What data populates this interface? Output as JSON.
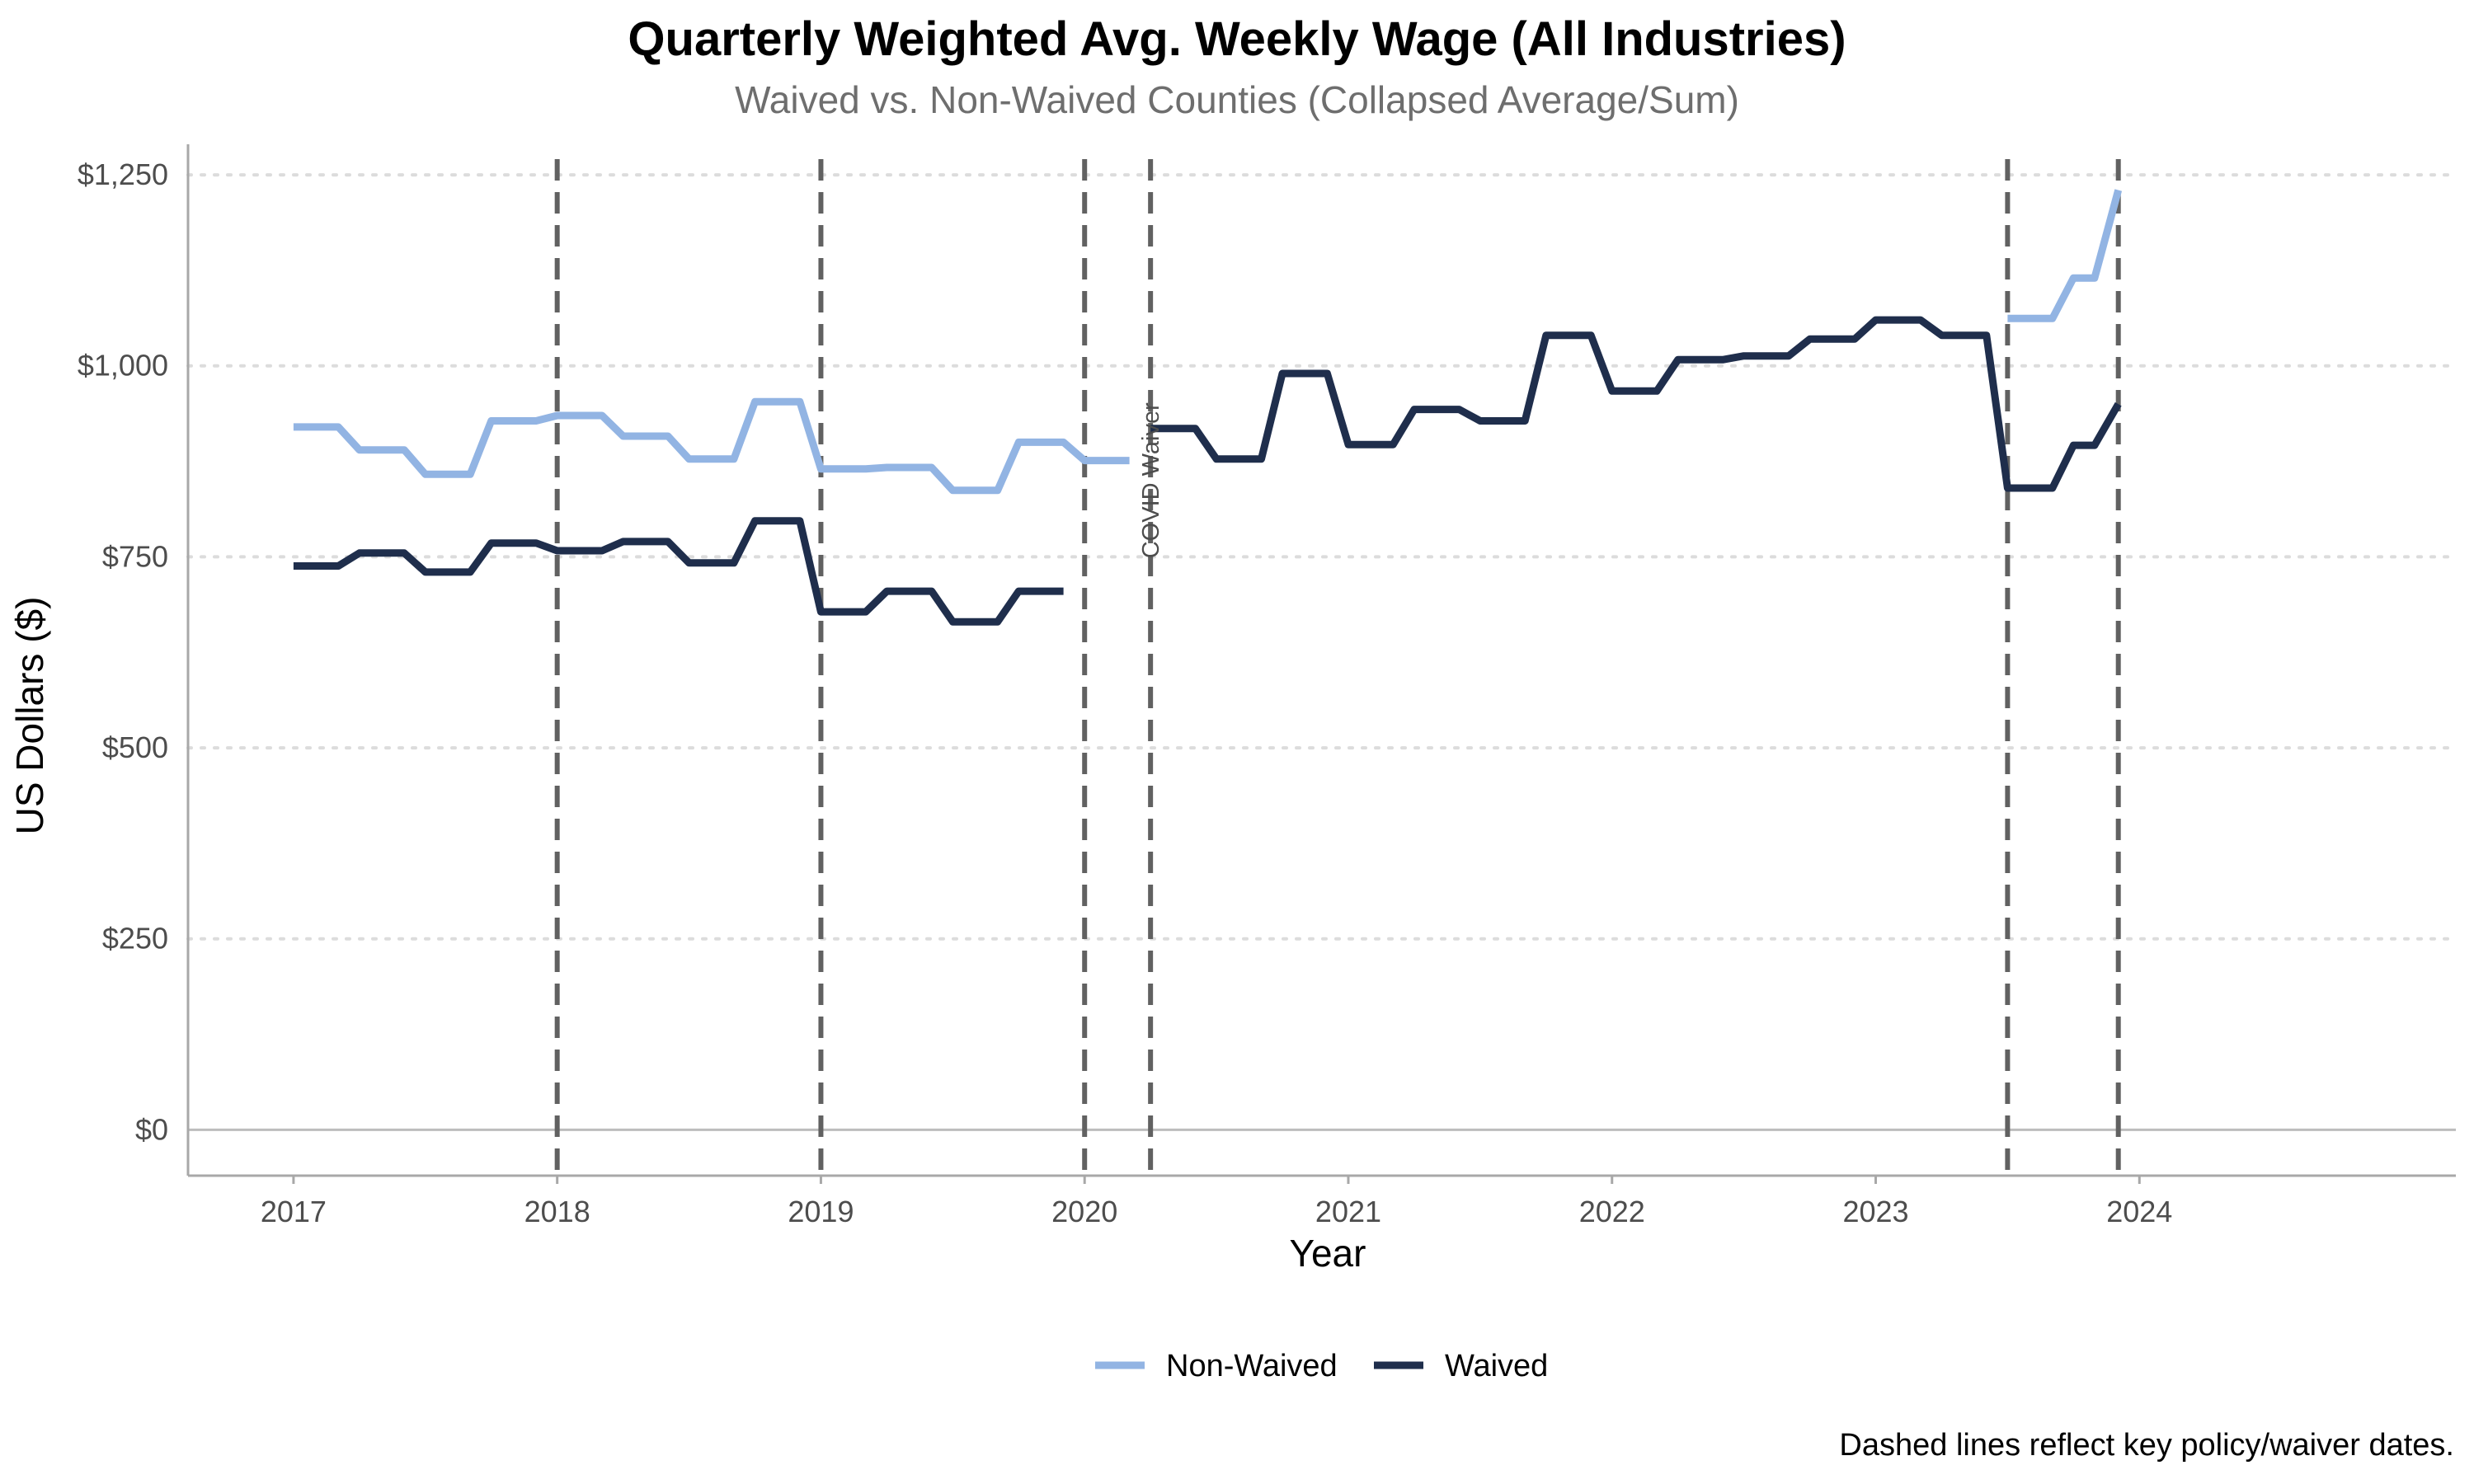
{
  "chart_data": {
    "type": "line",
    "title": "Quarterly Weighted Avg. Weekly Wage (All Industries)",
    "subtitle": "Waived vs. Non-Waived Counties (Collapsed Average/Sum)",
    "xlabel": "Year",
    "ylabel": "US Dollars ($)",
    "caption": "Dashed lines reflect key policy/waiver dates.",
    "xlim": [
      2016.6,
      2025.2
    ],
    "ylim": [
      -60,
      1290
    ],
    "x_ticks": [
      2017,
      2018,
      2019,
      2020,
      2021,
      2022,
      2023,
      2024
    ],
    "x_tick_labels": [
      "2017",
      "2018",
      "2019",
      "2020",
      "2021",
      "2022",
      "2023",
      "2024"
    ],
    "y_ticks": [
      0,
      250,
      500,
      750,
      1000,
      1250
    ],
    "y_tick_labels": [
      "$0",
      "$250",
      "$500",
      "$750",
      "$1,000",
      "$1,250"
    ],
    "grid": "horizontal dotted",
    "legend_position": "bottom",
    "colors": {
      "non_waived": "#92b4e3",
      "waived": "#1f2e4c",
      "vline": "#616161",
      "grid": "#dcdcdc",
      "axis": "#a8a8a8",
      "zero_line": "#bdbdbd"
    },
    "vlines": [
      2018.0,
      2019.0,
      2020.0,
      2020.25,
      2023.5,
      2023.92
    ],
    "annotations": [
      {
        "text": "COVID Waiver",
        "x": 2020.25,
        "y": 850,
        "rotation": -90
      }
    ],
    "series": [
      {
        "name": "Non-Waived",
        "color": "#92b4e3",
        "segments": [
          [
            [
              2017.0,
              920
            ],
            [
              2017.17,
              920
            ],
            [
              2017.25,
              890
            ],
            [
              2017.42,
              890
            ],
            [
              2017.5,
              858
            ],
            [
              2017.67,
              858
            ],
            [
              2017.75,
              928
            ],
            [
              2017.92,
              928
            ],
            [
              2018.0,
              935
            ],
            [
              2018.17,
              935
            ],
            [
              2018.25,
              908
            ],
            [
              2018.42,
              908
            ],
            [
              2018.5,
              878
            ],
            [
              2018.67,
              878
            ],
            [
              2018.75,
              953
            ],
            [
              2018.92,
              953
            ],
            [
              2019.0,
              865
            ],
            [
              2019.17,
              865
            ],
            [
              2019.25,
              867
            ],
            [
              2019.42,
              867
            ],
            [
              2019.5,
              837
            ],
            [
              2019.67,
              837
            ],
            [
              2019.75,
              900
            ],
            [
              2019.92,
              900
            ],
            [
              2020.0,
              876
            ],
            [
              2020.17,
              876
            ]
          ],
          [
            [
              2023.5,
              1062
            ],
            [
              2023.67,
              1062
            ],
            [
              2023.75,
              1115
            ],
            [
              2023.83,
              1115
            ],
            [
              2023.92,
              1230
            ]
          ]
        ]
      },
      {
        "name": "Waived",
        "color": "#1f2e4c",
        "segments": [
          [
            [
              2017.0,
              738
            ],
            [
              2017.17,
              738
            ],
            [
              2017.25,
              755
            ],
            [
              2017.42,
              755
            ],
            [
              2017.5,
              730
            ],
            [
              2017.67,
              730
            ],
            [
              2017.75,
              768
            ],
            [
              2017.92,
              768
            ],
            [
              2018.0,
              758
            ],
            [
              2018.17,
              758
            ],
            [
              2018.25,
              770
            ],
            [
              2018.42,
              770
            ],
            [
              2018.5,
              742
            ],
            [
              2018.67,
              742
            ],
            [
              2018.75,
              797
            ],
            [
              2018.92,
              797
            ],
            [
              2019.0,
              678
            ],
            [
              2019.17,
              678
            ],
            [
              2019.25,
              705
            ],
            [
              2019.42,
              705
            ],
            [
              2019.5,
              665
            ],
            [
              2019.67,
              665
            ],
            [
              2019.75,
              705
            ],
            [
              2019.92,
              705
            ]
          ],
          [
            [
              2020.25,
              918
            ],
            [
              2020.42,
              918
            ],
            [
              2020.5,
              878
            ],
            [
              2020.67,
              878
            ],
            [
              2020.75,
              990
            ],
            [
              2020.92,
              990
            ],
            [
              2021.0,
              897
            ],
            [
              2021.17,
              897
            ],
            [
              2021.25,
              943
            ],
            [
              2021.42,
              943
            ],
            [
              2021.5,
              928
            ],
            [
              2021.67,
              928
            ],
            [
              2021.75,
              1040
            ],
            [
              2021.92,
              1040
            ],
            [
              2022.0,
              967
            ],
            [
              2022.17,
              967
            ],
            [
              2022.25,
              1008
            ],
            [
              2022.42,
              1008
            ],
            [
              2022.5,
              1013
            ],
            [
              2022.67,
              1013
            ],
            [
              2022.75,
              1035
            ],
            [
              2022.92,
              1035
            ],
            [
              2023.0,
              1060
            ],
            [
              2023.17,
              1060
            ],
            [
              2023.25,
              1040
            ],
            [
              2023.42,
              1040
            ],
            [
              2023.5,
              840
            ],
            [
              2023.67,
              840
            ],
            [
              2023.75,
              896
            ],
            [
              2023.83,
              896
            ],
            [
              2023.92,
              950
            ]
          ]
        ]
      }
    ]
  }
}
